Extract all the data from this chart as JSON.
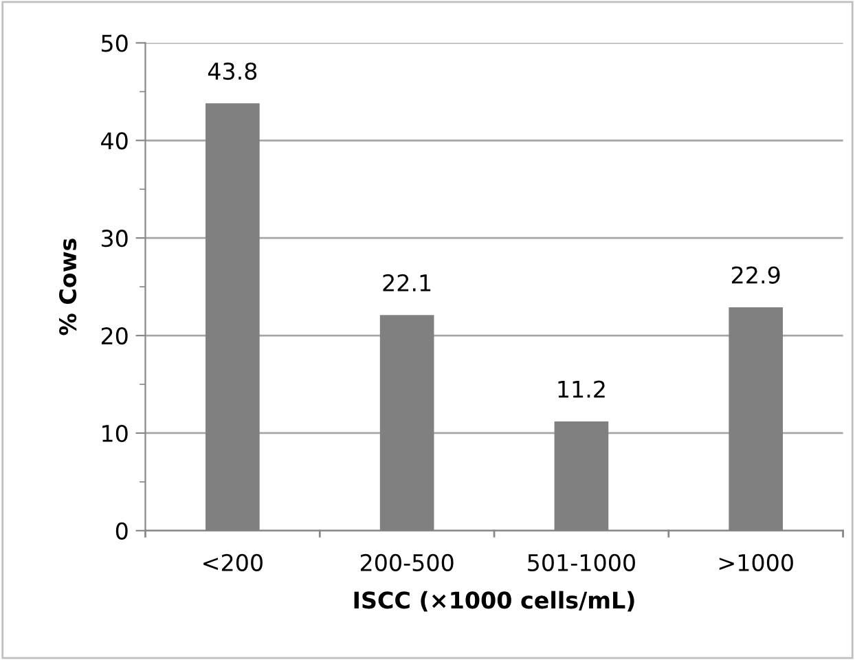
{
  "chart_data": {
    "type": "bar",
    "categories": [
      "<200",
      "200-500",
      "501-1000",
      ">1000"
    ],
    "values": [
      43.8,
      22.1,
      11.2,
      22.9
    ],
    "color": "#808080",
    "xlabel": "ISCC (×1000 cells/mL)",
    "ylabel": "% Cows",
    "ylim": [
      0,
      50
    ],
    "yticks": [
      0,
      {
        "value": 5,
        "label": null
      },
      10,
      {
        "value": 15,
        "label": null
      },
      20,
      {
        "value": 25,
        "label": null
      },
      30,
      {
        "value": 35,
        "label": null
      },
      40,
      {
        "value": 45,
        "label": null
      },
      50
    ],
    "grid": "y",
    "data_labels": true
  }
}
